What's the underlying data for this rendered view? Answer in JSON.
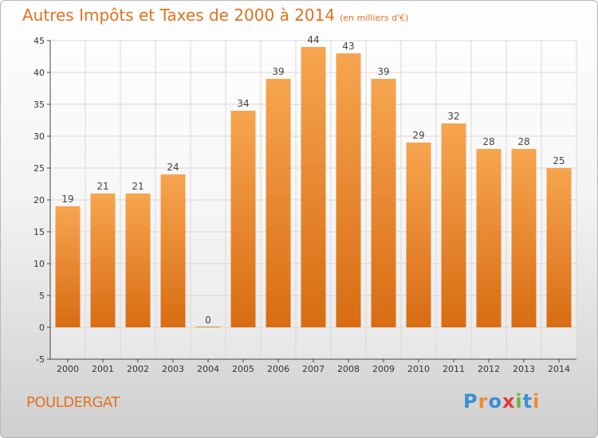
{
  "chart_data": {
    "type": "bar",
    "title": "Autres Impôts et Taxes de 2000 à 2014",
    "subtitle": "(en milliers d'€)",
    "categories": [
      "2000",
      "2001",
      "2002",
      "2003",
      "2004",
      "2005",
      "2006",
      "2007",
      "2008",
      "2009",
      "2010",
      "2011",
      "2012",
      "2013",
      "2014"
    ],
    "values": [
      19,
      21,
      21,
      24,
      0,
      34,
      39,
      44,
      43,
      39,
      29,
      32,
      28,
      28,
      25
    ],
    "ylim": [
      -5,
      45
    ],
    "yticks": [
      -5,
      0,
      5,
      10,
      15,
      20,
      25,
      30,
      35,
      40,
      45
    ],
    "grid": true,
    "xlabel": "",
    "ylabel": "",
    "bar_color": "#f08a30"
  },
  "footer": {
    "commune": "POULDERGAT",
    "logo_text": "Proxiti",
    "logo_colors": [
      "#3a8fd6",
      "#f08a30",
      "#3a8fd6",
      "#e23b3b",
      "#6cb33f",
      "#3a8fd6",
      "#f08a30"
    ]
  },
  "colors": {
    "accent": "#e4701e",
    "grid": "#d8d8d8",
    "axis": "#444444"
  }
}
